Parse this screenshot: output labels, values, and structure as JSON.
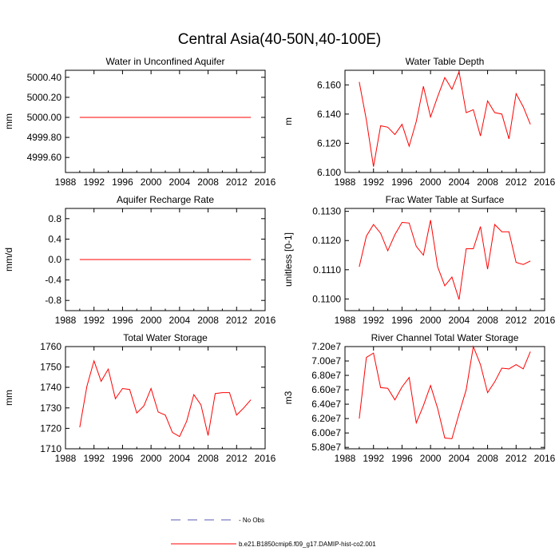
{
  "title": "Central Asia(40-50N,40-100E)",
  "legend": {
    "obs_label": "- No Obs",
    "obs_color": "#5a5ab0",
    "model_label": "b.e21.B1850cmip6.f09_g17.DAMIP-hist-co2.001",
    "model_color": "#ff0000"
  },
  "chart_data": [
    {
      "type": "line",
      "title": "Water in Unconfined Aquifer",
      "ylabel": "mm",
      "xlim": [
        1988,
        2016
      ],
      "xticks": [
        "1988",
        "1992",
        "1996",
        "2000",
        "2004",
        "2008",
        "2012",
        "2016"
      ],
      "ylim": [
        4999.45,
        5000.47
      ],
      "yticks": [
        "4999.60",
        "4999.80",
        "5000.00",
        "5000.20",
        "5000.40"
      ],
      "ytick_values": [
        4999.6,
        4999.8,
        5000.0,
        5000.2,
        5000.4
      ],
      "x": [
        1990,
        1991,
        1992,
        1993,
        1994,
        1995,
        1996,
        1997,
        1998,
        1999,
        2000,
        2001,
        2002,
        2003,
        2004,
        2005,
        2006,
        2007,
        2008,
        2009,
        2010,
        2011,
        2012,
        2013,
        2014
      ],
      "series": [
        {
          "color": "#ff0000",
          "values": [
            5000.0,
            5000.0,
            5000.0,
            5000.0,
            5000.0,
            5000.0,
            5000.0,
            5000.0,
            5000.0,
            5000.0,
            5000.0,
            5000.0,
            5000.0,
            5000.0,
            5000.0,
            5000.0,
            5000.0,
            5000.0,
            5000.0,
            5000.0,
            5000.0,
            5000.0,
            5000.0,
            5000.0,
            5000.0
          ]
        }
      ]
    },
    {
      "type": "line",
      "title": "Water Table Depth",
      "ylabel": "m",
      "xlim": [
        1988,
        2016
      ],
      "xticks": [
        "1988",
        "1992",
        "1996",
        "2000",
        "2004",
        "2008",
        "2012",
        "2016"
      ],
      "ylim": [
        6.1,
        6.17
      ],
      "yticks": [
        "6.100",
        "6.120",
        "6.140",
        "6.160"
      ],
      "ytick_values": [
        6.1,
        6.12,
        6.14,
        6.16
      ],
      "x": [
        1990,
        1991,
        1992,
        1993,
        1994,
        1995,
        1996,
        1997,
        1998,
        1999,
        2000,
        2001,
        2002,
        2003,
        2004,
        2005,
        2006,
        2007,
        2008,
        2009,
        2010,
        2011,
        2012,
        2013,
        2014
      ],
      "series": [
        {
          "color": "#ff0000",
          "values": [
            6.162,
            6.136,
            6.104,
            6.132,
            6.131,
            6.126,
            6.133,
            6.118,
            6.135,
            6.159,
            6.138,
            6.152,
            6.165,
            6.157,
            6.169,
            6.141,
            6.143,
            6.125,
            6.149,
            6.141,
            6.14,
            6.123,
            6.154,
            6.145,
            6.133
          ]
        }
      ]
    },
    {
      "type": "line",
      "title": "Aquifer Recharge Rate",
      "ylabel": "mm/d",
      "xlim": [
        1988,
        2016
      ],
      "xticks": [
        "1988",
        "1992",
        "1996",
        "2000",
        "2004",
        "2008",
        "2012",
        "2016"
      ],
      "ylim": [
        -1.0,
        1.0
      ],
      "yticks": [
        "-0.8",
        "-0.4",
        "0.0",
        "0.4",
        "0.8"
      ],
      "ytick_values": [
        -0.8,
        -0.4,
        0.0,
        0.4,
        0.8
      ],
      "x": [
        1990,
        1991,
        1992,
        1993,
        1994,
        1995,
        1996,
        1997,
        1998,
        1999,
        2000,
        2001,
        2002,
        2003,
        2004,
        2005,
        2006,
        2007,
        2008,
        2009,
        2010,
        2011,
        2012,
        2013,
        2014
      ],
      "series": [
        {
          "color": "#ff0000",
          "values": [
            0,
            0,
            0,
            0,
            0,
            0,
            0,
            0,
            0,
            0,
            0,
            0,
            0,
            0,
            0,
            0,
            0,
            0,
            0,
            0,
            0,
            0,
            0,
            0,
            0
          ]
        }
      ]
    },
    {
      "type": "line",
      "title": "Frac Water Table at Surface",
      "ylabel": "unitless [0-1]",
      "xlim": [
        1988,
        2016
      ],
      "xticks": [
        "1988",
        "1992",
        "1996",
        "2000",
        "2004",
        "2008",
        "2012",
        "2016"
      ],
      "ylim": [
        0.1096,
        0.1131
      ],
      "yticks": [
        "0.1100",
        "0.1110",
        "0.1120",
        "0.1130"
      ],
      "ytick_values": [
        0.11,
        0.111,
        0.112,
        0.113
      ],
      "x": [
        1990,
        1991,
        1992,
        1993,
        1994,
        1995,
        1996,
        1997,
        1998,
        1999,
        2000,
        2001,
        2002,
        2003,
        2004,
        2005,
        2006,
        2007,
        2008,
        2009,
        2010,
        2011,
        2012,
        2013,
        2014
      ],
      "series": [
        {
          "color": "#ff0000",
          "values": [
            0.1111,
            0.11215,
            0.11255,
            0.11225,
            0.11165,
            0.1122,
            0.11262,
            0.1126,
            0.1118,
            0.1115,
            0.1127,
            0.1111,
            0.11045,
            0.11075,
            0.10998,
            0.11172,
            0.11172,
            0.11248,
            0.11102,
            0.11255,
            0.1123,
            0.1123,
            0.11125,
            0.11118,
            0.1113
          ]
        }
      ]
    },
    {
      "type": "line",
      "title": "Total Water Storage",
      "ylabel": "mm",
      "xlim": [
        1988,
        2016
      ],
      "xticks": [
        "1988",
        "1992",
        "1996",
        "2000",
        "2004",
        "2008",
        "2012",
        "2016"
      ],
      "ylim": [
        1710,
        1760
      ],
      "yticks": [
        "1710",
        "1720",
        "1730",
        "1740",
        "1750",
        "1760"
      ],
      "ytick_values": [
        1710,
        1720,
        1730,
        1740,
        1750,
        1760
      ],
      "x": [
        1990,
        1991,
        1992,
        1993,
        1994,
        1995,
        1996,
        1997,
        1998,
        1999,
        2000,
        2001,
        2002,
        2003,
        2004,
        2005,
        2006,
        2007,
        2008,
        2009,
        2010,
        2011,
        2012,
        2013,
        2014
      ],
      "series": [
        {
          "color": "#ff0000",
          "values": [
            1720.5,
            1740.5,
            1753,
            1743,
            1749,
            1734.5,
            1739.5,
            1739,
            1727.5,
            1731,
            1739.5,
            1728,
            1726.5,
            1718,
            1716,
            1723.5,
            1736.5,
            1731.5,
            1716.5,
            1737,
            1737.5,
            1737.5,
            1726.5,
            1730,
            1734
          ]
        }
      ]
    },
    {
      "type": "line",
      "title": "River Channel Total Water Storage",
      "ylabel": "m3",
      "xlim": [
        1988,
        2016
      ],
      "xticks": [
        "1988",
        "1992",
        "1996",
        "2000",
        "2004",
        "2008",
        "2012",
        "2016"
      ],
      "ylim": [
        57800000,
        72000000
      ],
      "yticks": [
        "5.80e7",
        "6.00e7",
        "6.20e7",
        "6.40e7",
        "6.60e7",
        "6.80e7",
        "7.00e7",
        "7.20e7"
      ],
      "ytick_values": [
        58000000,
        60000000,
        62000000,
        64000000,
        66000000,
        68000000,
        70000000,
        72000000
      ],
      "x": [
        1990,
        1991,
        1992,
        1993,
        1994,
        1995,
        1996,
        1997,
        1998,
        1999,
        2000,
        2001,
        2002,
        2003,
        2004,
        2005,
        2006,
        2007,
        2008,
        2009,
        2010,
        2011,
        2012,
        2013,
        2014
      ],
      "series": [
        {
          "color": "#ff0000",
          "values": [
            62000000,
            70500000,
            71100000,
            66300000,
            66200000,
            64600000,
            66400000,
            67700000,
            61400000,
            63800000,
            66600000,
            63400000,
            59300000,
            59200000,
            62700000,
            66000000,
            72000000,
            69500000,
            65600000,
            67100000,
            69000000,
            68900000,
            69500000,
            68900000,
            71300000
          ]
        }
      ]
    }
  ]
}
